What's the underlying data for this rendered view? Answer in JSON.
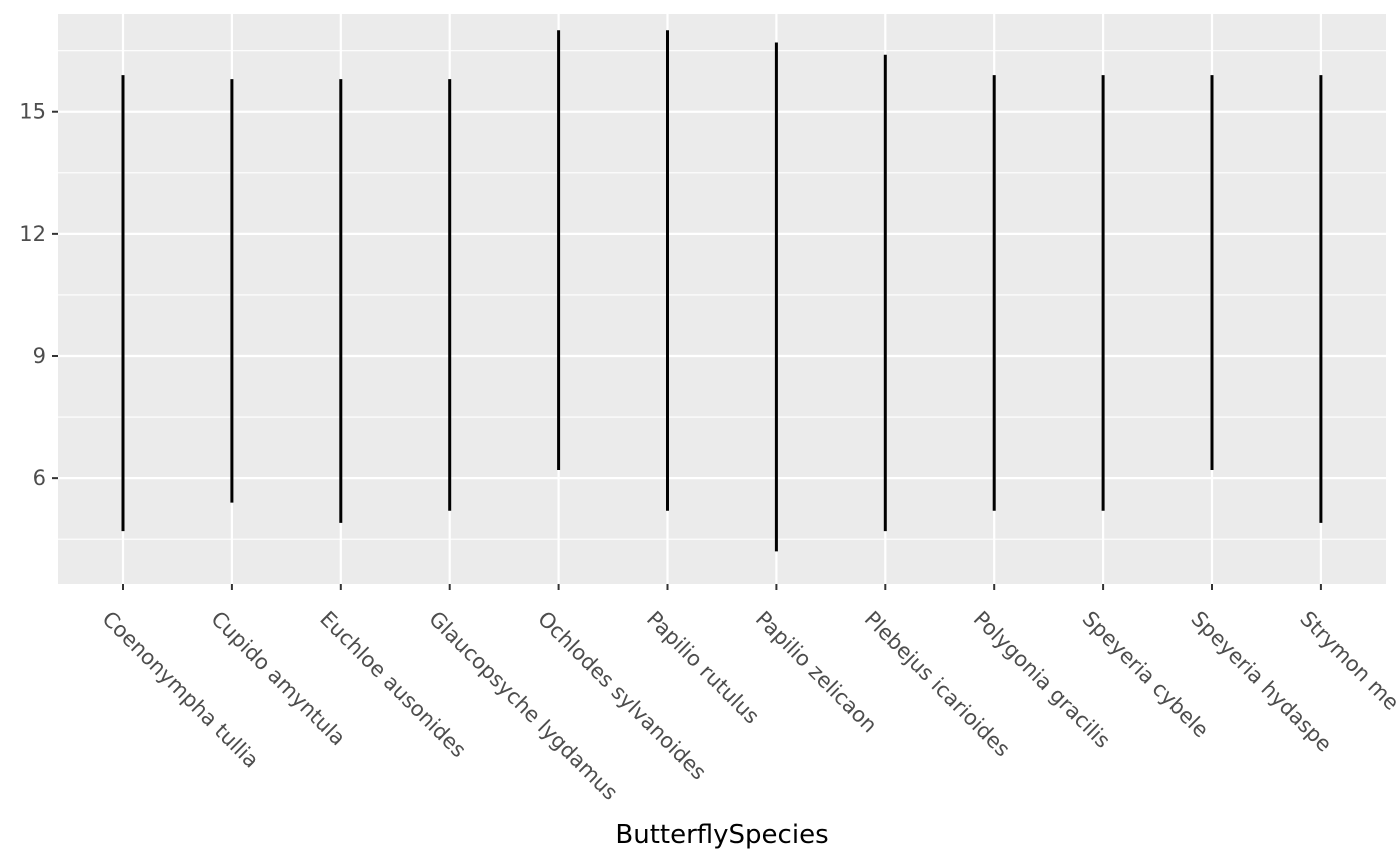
{
  "chart_data": {
    "type": "range",
    "xlabel": "ButterflySpecies",
    "ylabel": "",
    "ylim": [
      3.4,
      17.4
    ],
    "y_breaks": [
      6,
      9,
      12,
      15
    ],
    "grid": true,
    "colors": {
      "panel": "#ebebeb",
      "grid": "#ffffff",
      "mark": "#000000",
      "tick_text": "#4d4d4d"
    },
    "categories": [
      "Coenonympha tullia",
      "Cupido amyntula",
      "Euchloe ausonides",
      "Glaucopsyche lygdamus",
      "Ochlodes sylvanoides",
      "Papilio rutulus",
      "Papilio zelicaon",
      "Plebejus icarioides",
      "Polygonia gracilis",
      "Speyeria cybele",
      "Speyeria hydaspe",
      "Strymon me"
    ],
    "series": [
      {
        "min": [
          4.7,
          5.4,
          4.9,
          5.2,
          6.2,
          5.2,
          4.2,
          4.7,
          5.2,
          5.2,
          6.2,
          4.9
        ],
        "max": [
          15.9,
          15.8,
          15.8,
          15.8,
          17.0,
          17.0,
          16.7,
          16.4,
          15.9,
          15.9,
          15.9,
          15.9
        ]
      }
    ]
  }
}
